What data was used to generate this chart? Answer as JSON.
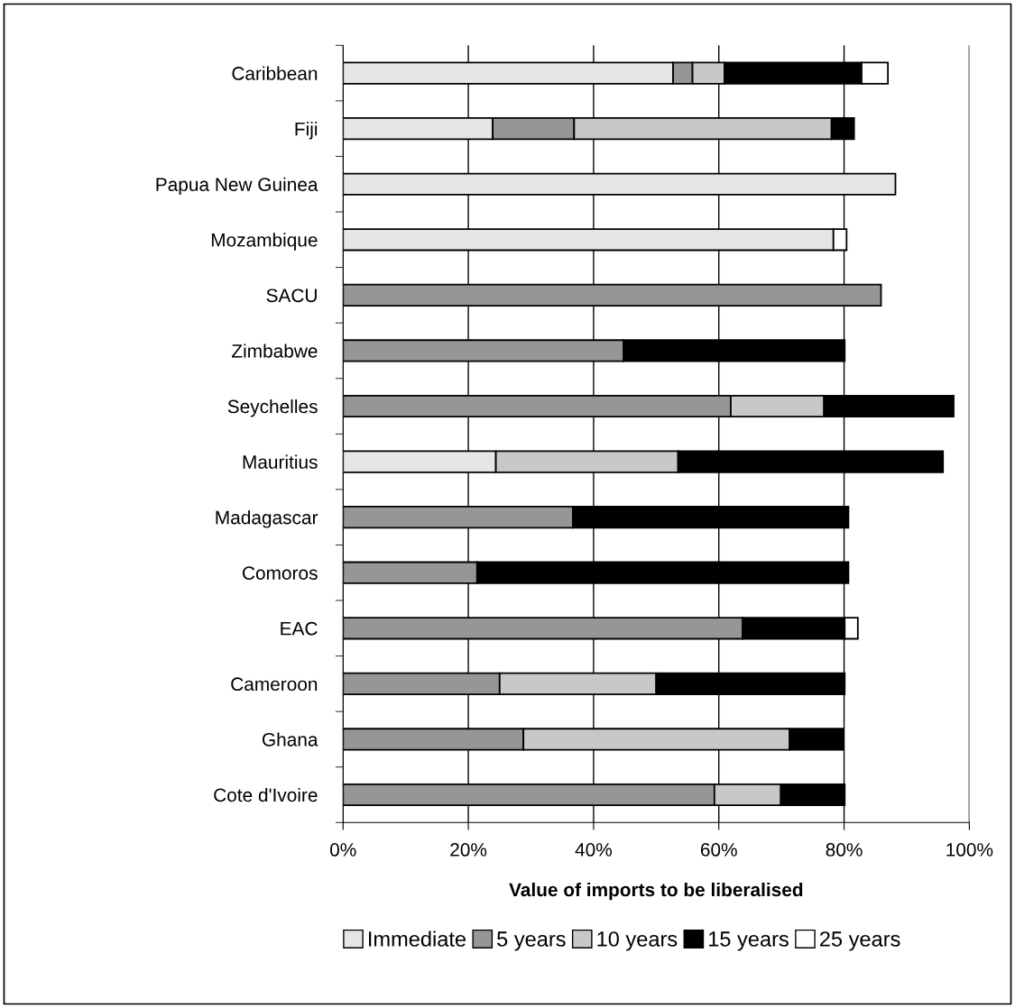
{
  "chart_data": {
    "type": "bar",
    "orientation": "horizontal",
    "stacked": true,
    "xlabel": "Value of imports to be liberalised",
    "categories": [
      "Caribbean",
      "Fiji",
      "Papua New Guinea",
      "Mozambique",
      "SACU",
      "Zimbabwe",
      "Seychelles",
      "Mauritius",
      "Madagascar",
      "Comoros",
      "EAC",
      "Cameroon",
      "Ghana",
      "Cote d'Ivoire"
    ],
    "series": [
      {
        "name": "Immediate",
        "color": "#e6e6e6",
        "values": [
          52.7,
          23.9,
          88.2,
          78.3,
          null,
          null,
          null,
          24.4,
          null,
          null,
          null,
          null,
          null,
          null
        ]
      },
      {
        "name": "5 years",
        "color": "#969696",
        "values": [
          3.1,
          13.0,
          null,
          null,
          85.9,
          44.8,
          61.9,
          null,
          36.7,
          21.4,
          63.8,
          25.0,
          28.8,
          59.3
        ]
      },
      {
        "name": "10 years",
        "color": "#c8c8c8",
        "values": [
          5.1,
          41.1,
          null,
          null,
          null,
          null,
          14.9,
          29.1,
          null,
          null,
          null,
          25.0,
          42.5,
          10.6
        ]
      },
      {
        "name": "15 years",
        "color": "#000000",
        "values": [
          21.9,
          3.6,
          null,
          null,
          null,
          35.3,
          20.7,
          42.3,
          44.0,
          59.3,
          16.3,
          30.1,
          8.6,
          10.2
        ]
      },
      {
        "name": "25 years",
        "color": "#ffffff",
        "values": [
          4.2,
          null,
          null,
          2.1,
          null,
          null,
          null,
          null,
          null,
          null,
          2.1,
          null,
          null,
          null
        ]
      }
    ],
    "xlim": [
      0,
      100
    ],
    "xticks": [
      {
        "value": 0,
        "label": "0%"
      },
      {
        "value": 20,
        "label": "20%"
      },
      {
        "value": 40,
        "label": "40%"
      },
      {
        "value": 60,
        "label": "60%"
      },
      {
        "value": 80,
        "label": "80%"
      },
      {
        "value": 100,
        "label": "100%"
      }
    ],
    "grid": "x",
    "legend": "bottom"
  }
}
